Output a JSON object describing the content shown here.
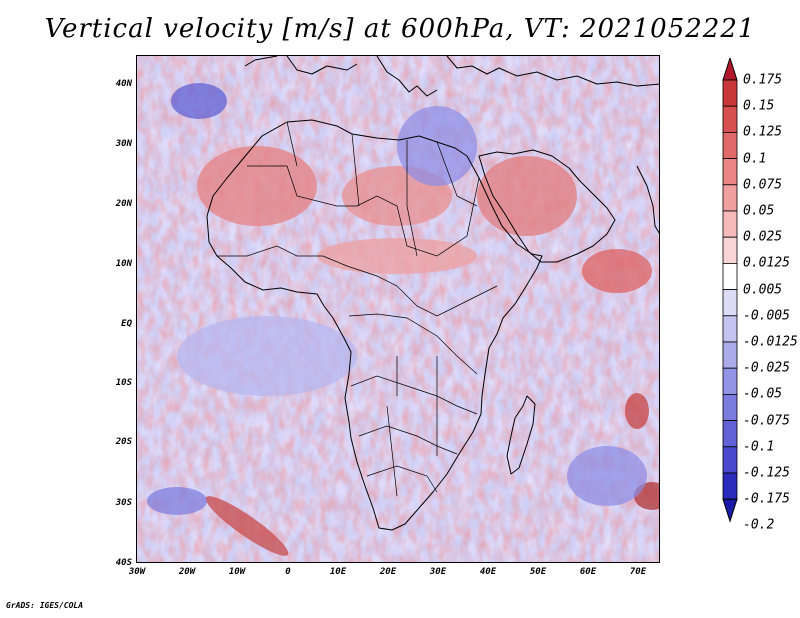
{
  "title": "Vertical velocity [m/s] at 600hPa, VT: 2021052221",
  "credit": "GrADS: IGES/COLA",
  "map": {
    "region": "Africa",
    "lat_labels": [
      "40N",
      "30N",
      "20N",
      "10N",
      "EQ",
      "10S",
      "20S",
      "30S",
      "40S"
    ],
    "lon_labels": [
      "30W",
      "20W",
      "10W",
      "0",
      "10E",
      "20E",
      "30E",
      "40E",
      "50E",
      "60E",
      "70E"
    ]
  },
  "colorbar": {
    "labels": [
      "0.175",
      "0.15",
      "0.125",
      "0.1",
      "0.075",
      "0.05",
      "0.025",
      "0.0125",
      "0.005",
      "-0.005",
      "-0.0125",
      "-0.025",
      "-0.05",
      "-0.075",
      "-0.1",
      "-0.125",
      "-0.175",
      "-0.2"
    ],
    "colors": [
      "#b2182b",
      "#c93838",
      "#d65050",
      "#e06a6a",
      "#ea8585",
      "#f1a0a0",
      "#f6baba",
      "#fad5d5",
      "#ffffff",
      "#dcdcf7",
      "#c4c4f1",
      "#acacec",
      "#9494e6",
      "#7c7cdf",
      "#6262d6",
      "#4848cc",
      "#2a2abb",
      "#1a1aa8"
    ]
  }
}
